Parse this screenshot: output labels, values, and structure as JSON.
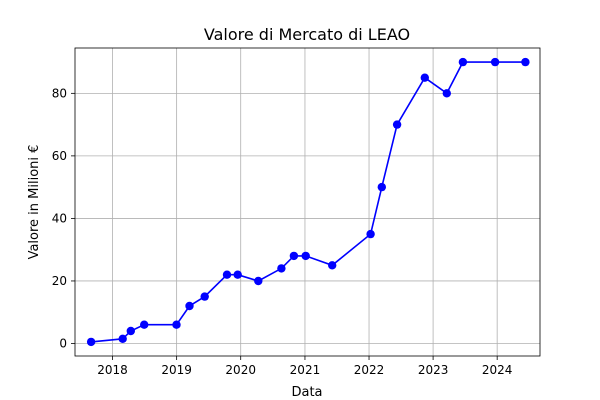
{
  "chart_data": {
    "type": "line",
    "title": "Valore di Mercato di LEAO",
    "xlabel": "Data",
    "ylabel": "Valore in Milioni €",
    "xlim": [
      "2017-06-01",
      "2024-09-01"
    ],
    "ylim": [
      -4,
      94.5
    ],
    "x_ticks": [
      "2018",
      "2019",
      "2020",
      "2021",
      "2022",
      "2023",
      "2024"
    ],
    "y_ticks": [
      0,
      20,
      40,
      60,
      80
    ],
    "grid": true,
    "legend": "none",
    "series": [
      {
        "color": "#0000ff",
        "marker": "circle",
        "x": [
          "2017-09-01",
          "2018-02-28",
          "2018-04-15",
          "2018-06-30",
          "2018-12-31",
          "2019-03-15",
          "2019-06-10",
          "2019-10-15",
          "2019-12-15",
          "2020-04-10",
          "2020-08-20",
          "2020-10-30",
          "2021-01-05",
          "2021-06-05",
          "2022-01-10",
          "2022-03-15",
          "2022-06-10",
          "2022-11-15",
          "2023-03-20",
          "2023-06-20",
          "2023-12-20",
          "2024-06-10"
        ],
        "values": [
          0.5,
          1.5,
          4,
          6,
          6,
          12,
          15,
          22,
          22,
          20,
          24,
          28,
          28,
          25,
          35,
          50,
          70,
          85,
          80,
          90,
          90,
          90
        ]
      }
    ]
  }
}
